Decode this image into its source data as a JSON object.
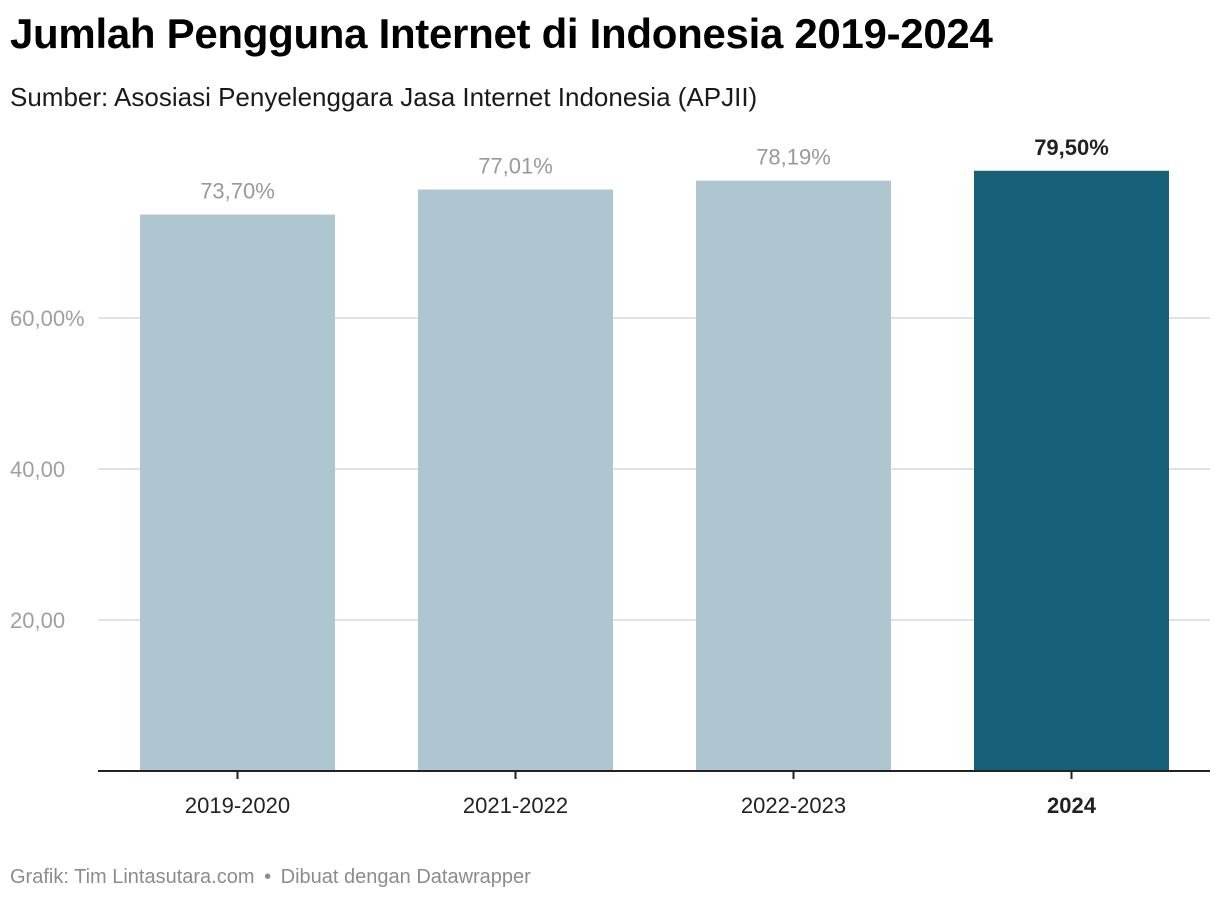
{
  "header": {
    "title": "Jumlah Pengguna Internet di Indonesia 2019-2024",
    "subtitle": "Sumber: Asosiasi Penyelenggara Jasa Internet Indonesia (APJII)"
  },
  "footer": {
    "credit": "Grafik: Tim Lintasutara.com",
    "separator": "•",
    "tool": "Dibuat dengan Datawrapper"
  },
  "colors": {
    "bar_default": "#adc6cf",
    "bar_highlight": "#166079",
    "grid": "#e2e2e2",
    "axis": "#222222",
    "tick_label": "#a0a0a0",
    "value_label": "#999999",
    "value_label_highlight": "#222222",
    "category_label": "#222222"
  },
  "chart_data": {
    "type": "bar",
    "title": "Jumlah Pengguna Internet di Indonesia 2019-2024",
    "subtitle": "Sumber: Asosiasi Penyelenggara Jasa Internet Indonesia (APJII)",
    "categories": [
      "2019-2020",
      "2021-2022",
      "2022-2023",
      "2024"
    ],
    "values": [
      73.7,
      77.01,
      78.19,
      79.5
    ],
    "value_labels": [
      "73,70%",
      "77,01%",
      "78,19%",
      "79,50%"
    ],
    "highlight_index": 3,
    "yticks": [
      {
        "value": 20,
        "label": "20,00"
      },
      {
        "value": 40,
        "label": "40,00"
      },
      {
        "value": 60,
        "label": "60,00%"
      }
    ],
    "ylim": [
      0,
      80
    ],
    "grid": true,
    "legend": "none"
  }
}
